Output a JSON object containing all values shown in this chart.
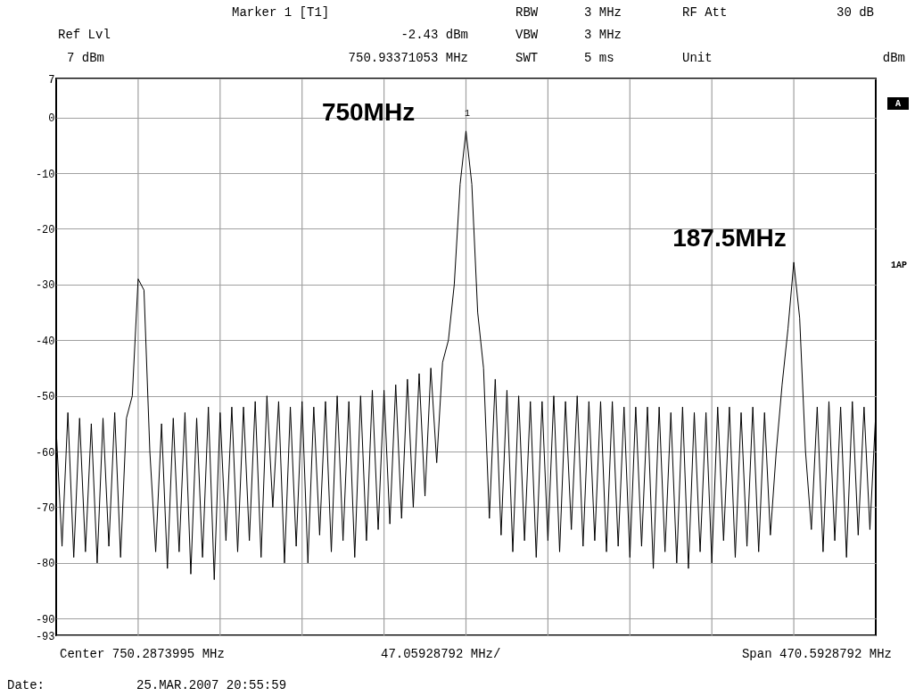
{
  "chart_data": {
    "type": "line",
    "categories": [
      null,
      null,
      null,
      null,
      null,
      null,
      null,
      null,
      null,
      null,
      null,
      null,
      null,
      null,
      null,
      null,
      null,
      null,
      null,
      null,
      null,
      null,
      null,
      null,
      null,
      null,
      null,
      null,
      null,
      null,
      null,
      null,
      null,
      null,
      null,
      null,
      null,
      null,
      null,
      null,
      null,
      null,
      null,
      null,
      null,
      null,
      null,
      null,
      null,
      null,
      null,
      null,
      null,
      null,
      null,
      null,
      null,
      null,
      null,
      null,
      null,
      null,
      null,
      null,
      null,
      null,
      null,
      null,
      null,
      null,
      null,
      null,
      null,
      null,
      null,
      null,
      null,
      null,
      null,
      null,
      null,
      null,
      null,
      null,
      null,
      null,
      null,
      null,
      null,
      null,
      null,
      null,
      null,
      null,
      null,
      null,
      null,
      null,
      null,
      null,
      null,
      null,
      null,
      null,
      null,
      null,
      null,
      null,
      null,
      null,
      null,
      null,
      null,
      null,
      null,
      null,
      null,
      null,
      null,
      null,
      null,
      null,
      null,
      null,
      null,
      null,
      null,
      null,
      null,
      null,
      null,
      null,
      null,
      null,
      null,
      null,
      null,
      null,
      null,
      null,
      null
    ],
    "series": [
      {
        "color": "#000000",
        "values": [
          -56,
          -77,
          -53,
          -79,
          -54,
          -78,
          -55,
          -80,
          -54,
          -77,
          -53,
          -79,
          -54,
          -50,
          -29,
          -31,
          -60,
          -78,
          -55,
          -81,
          -54,
          -78,
          -53,
          -82,
          -54,
          -79,
          -52,
          -83,
          -53,
          -76,
          -52,
          -78,
          -52,
          -76,
          -51,
          -79,
          -50,
          -70,
          -51,
          -80,
          -52,
          -77,
          -51,
          -80,
          -52,
          -75,
          -51,
          -78,
          -50,
          -76,
          -51,
          -79,
          -50,
          -76,
          -49,
          -74,
          -49,
          -73,
          -48,
          -72,
          -47,
          -70,
          -46,
          -68,
          -45,
          -62,
          -44,
          -40,
          -30,
          -12,
          -2.43,
          -12,
          -35,
          -45,
          -72,
          -47,
          -75,
          -49,
          -78,
          -50,
          -76,
          -51,
          -79,
          -51,
          -76,
          -50,
          -78,
          -51,
          -74,
          -50,
          -77,
          -51,
          -76,
          -51,
          -78,
          -51,
          -77,
          -52,
          -79,
          -52,
          -77,
          -52,
          -81,
          -52,
          -78,
          -53,
          -80,
          -52,
          -81,
          -53,
          -78,
          -53,
          -80,
          -52,
          -76,
          -52,
          -79,
          -53,
          -77,
          -52,
          -78,
          -53,
          -75,
          -60,
          -48,
          -38,
          -26,
          -36,
          -60,
          -74,
          -52,
          -78,
          -51,
          -76,
          -52,
          -79,
          -51,
          -75,
          -52,
          -74,
          -53
        ]
      }
    ],
    "ylim": [
      -93,
      7
    ],
    "yticks": [
      7,
      0,
      -10,
      -20,
      -30,
      -40,
      -50,
      -60,
      -70,
      -80,
      -90,
      -93
    ],
    "tick_labels": "y",
    "grid": true,
    "legend": false,
    "annotations": [
      "Marker 1 [T1]",
      "Ref Lvl",
      "-2.43 dBm",
      "7 dBm",
      "750.93371053 MHz",
      "RBW",
      "3 MHz",
      "VBW",
      "3 MHz",
      "SWT",
      "5 ms",
      "RF Att",
      "30 dB",
      "Unit",
      "dBm",
      "A",
      "1AP",
      "Center 750.2873995 MHz",
      "47.05928792 MHz/",
      "Span 470.5928792 MHz",
      "Date:",
      "25.MAR.2007  20:55:59",
      "750MHz",
      "187.5MHz",
      "1"
    ]
  }
}
